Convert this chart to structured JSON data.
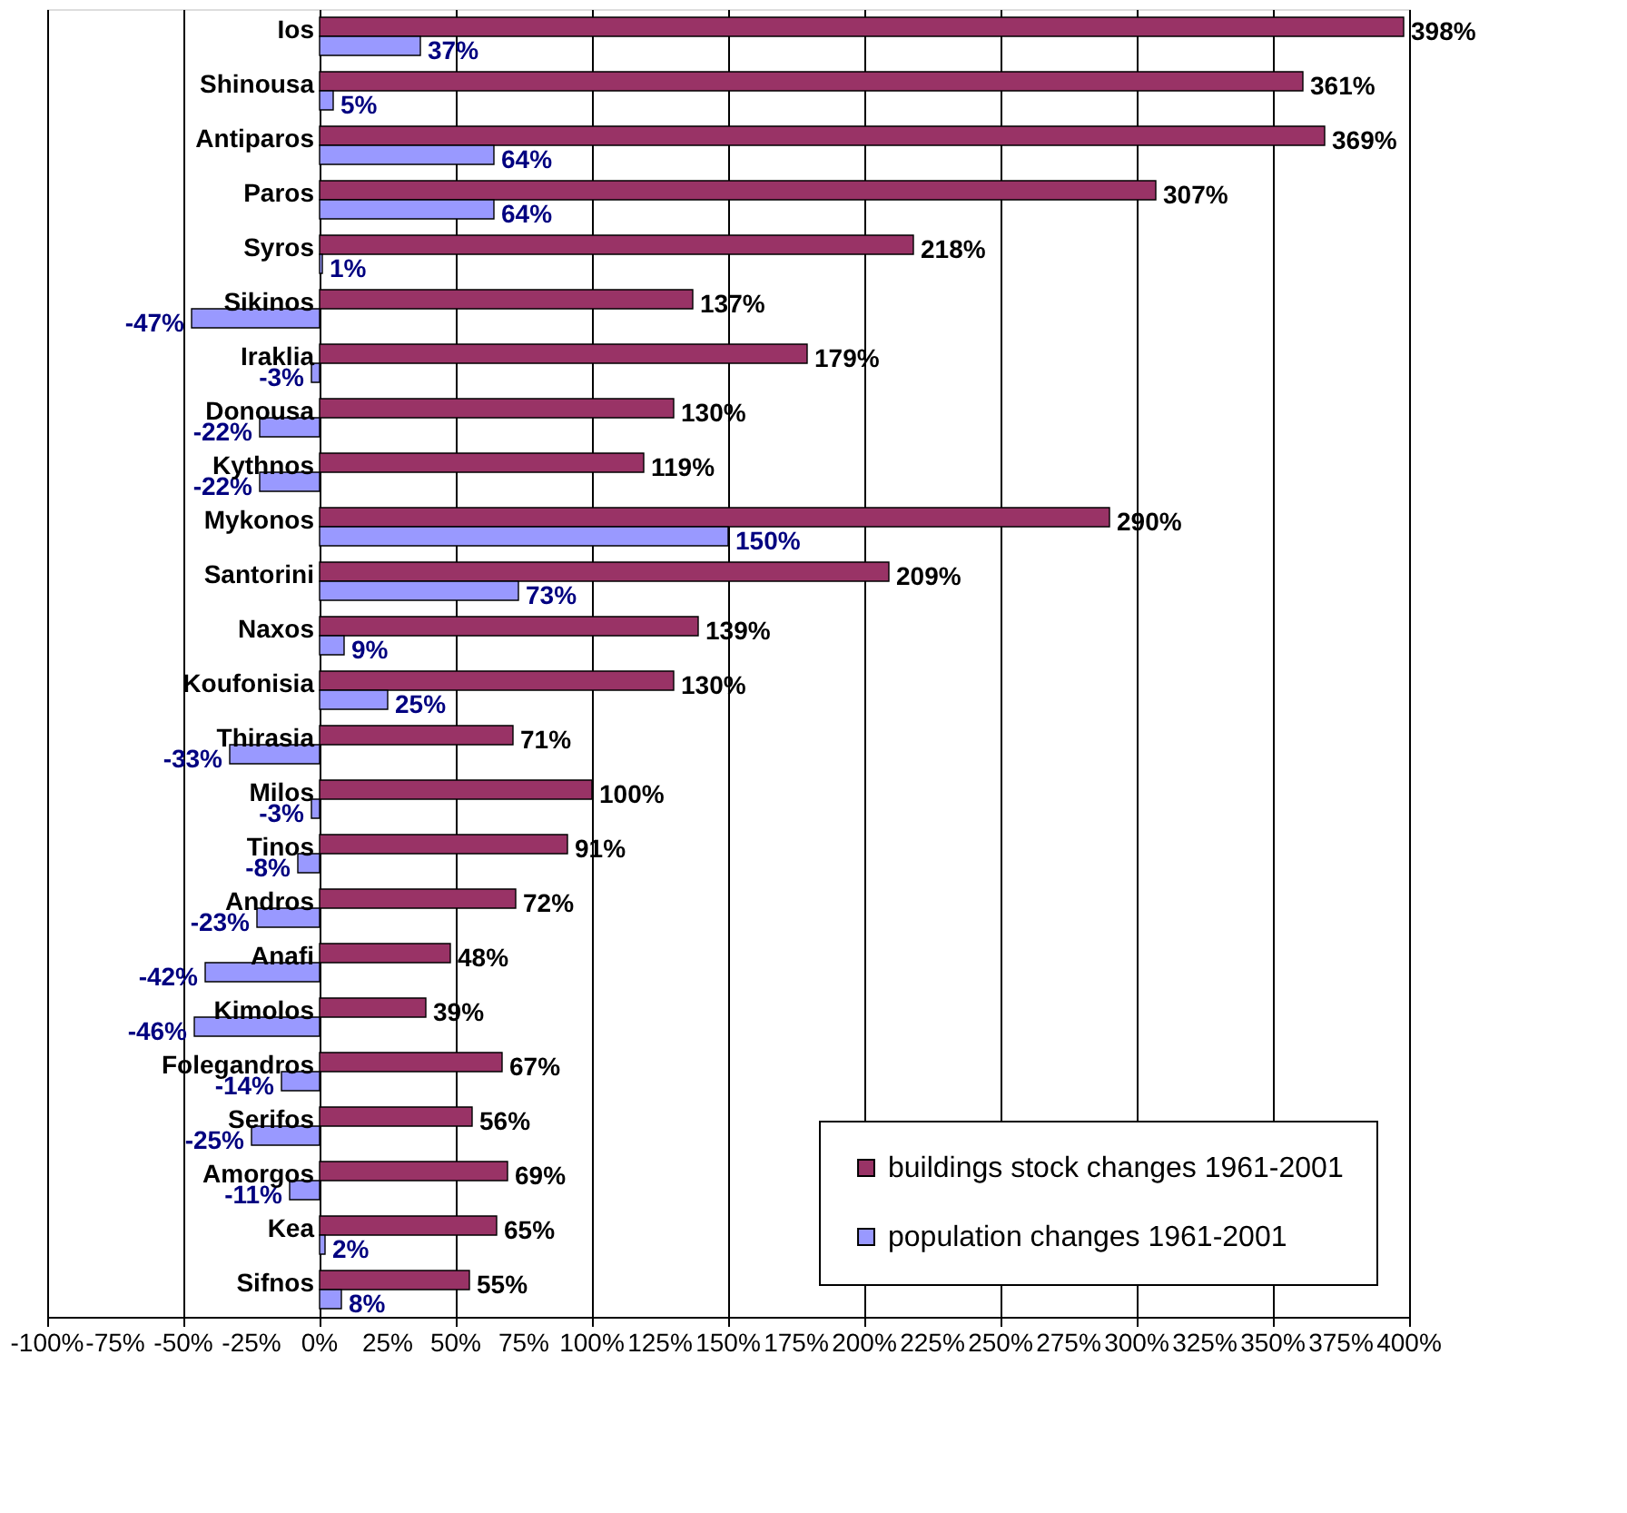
{
  "chart_data": {
    "type": "bar",
    "orientation": "horizontal",
    "categories": [
      "Ios",
      "Shinousa",
      "Antiparos",
      "Paros",
      "Syros",
      "Sikinos",
      "Iraklia",
      "Donousa",
      "Kythnos",
      "Mykonos",
      "Santorini",
      "Naxos",
      "Koufonisia",
      "Thirasia",
      "Milos",
      "Tinos",
      "Andros",
      "Anafi",
      "Kimolos",
      "Folegandros",
      "Serifos",
      "Amorgos",
      "Kea",
      "Sifnos"
    ],
    "series": [
      {
        "name": "buildings stock changes 1961-2001",
        "color": "#993366",
        "values": [
          398,
          361,
          369,
          307,
          218,
          137,
          179,
          130,
          119,
          290,
          209,
          139,
          130,
          71,
          100,
          91,
          72,
          48,
          39,
          67,
          56,
          69,
          65,
          55
        ],
        "value_labels": [
          "398%",
          "361%",
          "369%",
          "307%",
          "218%",
          "137%",
          "179%",
          "130%",
          "119%",
          "290%",
          "209%",
          "139%",
          "130%",
          "71%",
          "100%",
          "91%",
          "72%",
          "48%",
          "39%",
          "67%",
          "56%",
          "69%",
          "65%",
          "55%"
        ]
      },
      {
        "name": "population changes 1961-2001",
        "color": "#9999ff",
        "values": [
          37,
          5,
          64,
          64,
          1,
          -47,
          -3,
          -22,
          -22,
          150,
          73,
          9,
          25,
          -33,
          -3,
          -8,
          -23,
          -42,
          -46,
          -14,
          -25,
          -11,
          2,
          8
        ],
        "value_labels": [
          "37%",
          "5%",
          "64%",
          "64%",
          "1%",
          "-47%",
          "-3%",
          "-22%",
          "-22%",
          "150%",
          "73%",
          "9%",
          "25%",
          "-33%",
          "-3%",
          "-8%",
          "-23%",
          "-42%",
          "-46%",
          "-14%",
          "-25%",
          "-11%",
          "2%",
          "8%"
        ]
      }
    ],
    "xlim": [
      -100,
      400
    ],
    "xticks": [
      {
        "value": -100,
        "label": "-100%"
      },
      {
        "value": -75,
        "label": "-75%"
      },
      {
        "value": -50,
        "label": "-50%"
      },
      {
        "value": -25,
        "label": "-25%"
      },
      {
        "value": 0,
        "label": "0%"
      },
      {
        "value": 25,
        "label": "25%"
      },
      {
        "value": 50,
        "label": "50%"
      },
      {
        "value": 75,
        "label": "75%"
      },
      {
        "value": 100,
        "label": "100%"
      },
      {
        "value": 125,
        "label": "125%"
      },
      {
        "value": 150,
        "label": "150%"
      },
      {
        "value": 175,
        "label": "175%"
      },
      {
        "value": 200,
        "label": "200%"
      },
      {
        "value": 225,
        "label": "225%"
      },
      {
        "value": 250,
        "label": "250%"
      },
      {
        "value": 275,
        "label": "275%"
      },
      {
        "value": 300,
        "label": "300%"
      },
      {
        "value": 325,
        "label": "325%"
      },
      {
        "value": 350,
        "label": "350%"
      },
      {
        "value": 375,
        "label": "375%"
      },
      {
        "value": 400,
        "label": "400%"
      }
    ],
    "grid": "x",
    "legend": "bottom right"
  }
}
